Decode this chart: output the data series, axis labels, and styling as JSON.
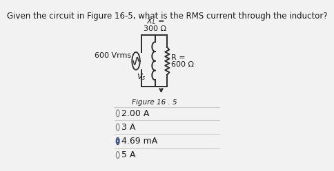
{
  "title": "Given the circuit in Figure 16-5, what is the RMS current through the inductor?",
  "title_fontsize": 8.5,
  "xl_line1": "$X_L$ =",
  "xl_line2": "300 Ω",
  "vs_left": "600 Vrms",
  "vs_sub": "$V_s$",
  "r_line1": "R =",
  "r_line2": "600 Ω",
  "figure_label": "Figure 16 . 5",
  "options": [
    "2.00 A",
    "3 A",
    "4.69 mA",
    "5 A"
  ],
  "correct_index": 2,
  "bg_color": "#f2f2f2",
  "text_color": "#1a1a1a",
  "line_color": "#2a2a2a",
  "radio_empty_color": "#888888",
  "radio_fill_color": "#2255cc",
  "sep_color": "#cccccc"
}
